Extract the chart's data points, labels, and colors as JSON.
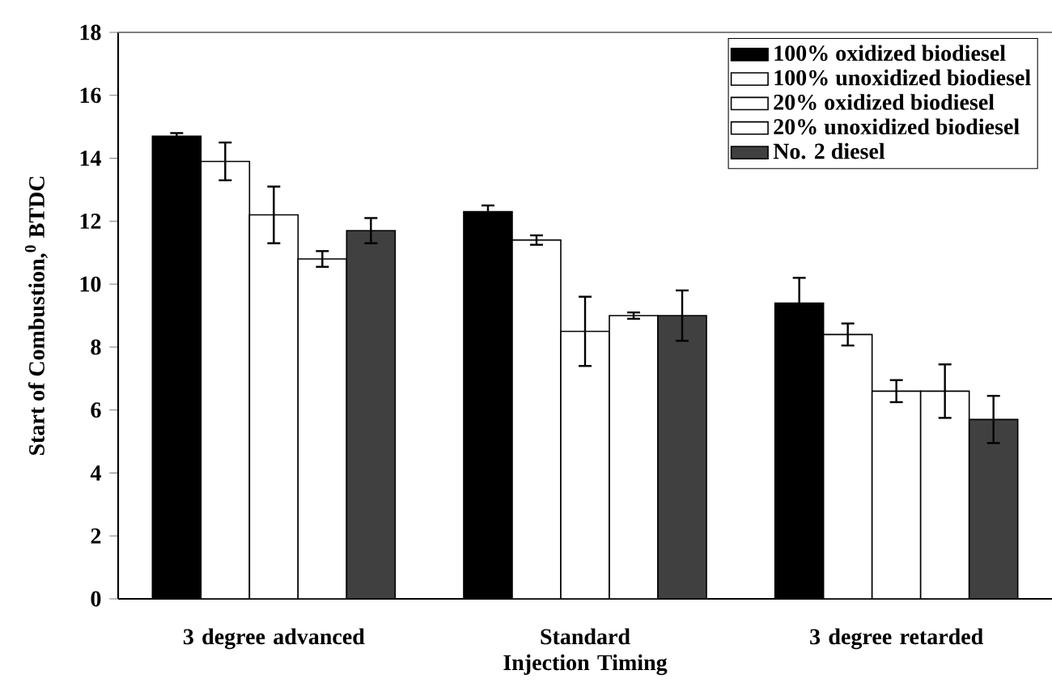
{
  "chart_data": {
    "type": "bar",
    "ylabel": "Start of Combustion,$^{0}$ BTDC",
    "categories": [
      "3 degree advanced",
      "Standard Injection Timing",
      "3 degree retarded"
    ],
    "series": [
      {
        "name": "100% oxidized biodiesel",
        "color": "#000000",
        "values": [
          14.7,
          12.3,
          9.4
        ],
        "errors": [
          0.1,
          0.2,
          0.8
        ]
      },
      {
        "name": "100% unoxidized biodiesel",
        "color": "#ffffff",
        "values": [
          13.9,
          11.4,
          8.4
        ],
        "errors": [
          0.6,
          0.15,
          0.35
        ]
      },
      {
        "name": "20% oxidized biodiesel",
        "color": "#ffffff",
        "values": [
          12.2,
          8.5,
          6.6
        ],
        "errors": [
          0.9,
          1.1,
          0.35
        ]
      },
      {
        "name": "20% unoxidized biodiesel",
        "color": "#ffffff",
        "values": [
          10.8,
          9.0,
          6.6
        ],
        "errors": [
          0.25,
          0.1,
          0.85
        ]
      },
      {
        "name": "No. 2 diesel",
        "color": "#404040",
        "values": [
          11.7,
          9.0,
          5.7
        ],
        "errors": [
          0.4,
          0.8,
          0.75
        ]
      }
    ],
    "ylim": [
      0,
      18
    ],
    "yticks": [
      0,
      2,
      4,
      6,
      8,
      10,
      12,
      14,
      16,
      18
    ],
    "grid": false,
    "legend": "top right"
  }
}
